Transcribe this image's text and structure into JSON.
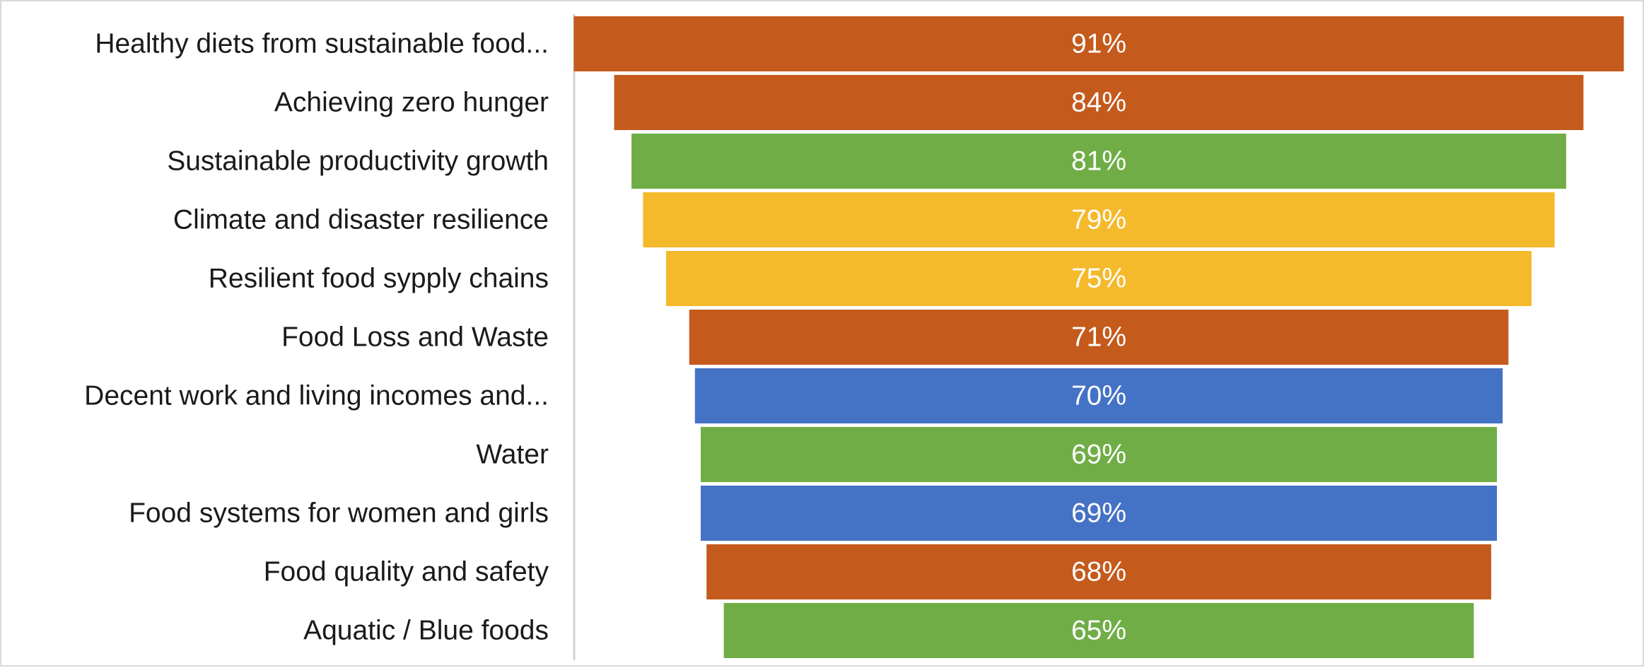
{
  "chart_data": {
    "type": "bar",
    "orientation": "horizontal-funnel",
    "categories": [
      "Healthy diets from sustainable food...",
      "Achieving zero hunger",
      "Sustainable productivity growth",
      "Climate and disaster resilience",
      "Resilient food sypply chains",
      "Food Loss and Waste",
      "Decent work and living incomes and...",
      "Water",
      "Food systems for women and girls",
      "Food quality and safety",
      "Aquatic / Blue foods"
    ],
    "values": [
      91,
      84,
      81,
      79,
      75,
      71,
      70,
      69,
      69,
      68,
      65
    ],
    "value_labels": [
      "91%",
      "84%",
      "81%",
      "79%",
      "75%",
      "71%",
      "70%",
      "69%",
      "69%",
      "68%",
      "65%"
    ],
    "bar_colors": [
      "#c55a1d",
      "#c55a1d",
      "#70ad47",
      "#f5b92c",
      "#f5b92c",
      "#c55a1d",
      "#4472c4",
      "#70ad47",
      "#4472c4",
      "#c55a1d",
      "#70ad47"
    ],
    "title": "",
    "xlabel": "",
    "ylabel": "",
    "xlim": [
      0,
      91
    ],
    "grid": false,
    "legend": "none"
  }
}
